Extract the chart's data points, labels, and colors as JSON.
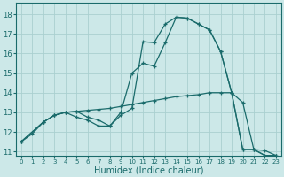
{
  "xlabel": "Humidex (Indice chaleur)",
  "background_color": "#cce8e8",
  "grid_color": "#aad0d0",
  "line_color": "#1a6b6b",
  "xlim": [
    -0.5,
    23.5
  ],
  "ylim": [
    10.8,
    18.6
  ],
  "yticks": [
    11,
    12,
    13,
    14,
    15,
    16,
    17,
    18
  ],
  "xticks": [
    0,
    1,
    2,
    3,
    4,
    5,
    6,
    7,
    8,
    9,
    10,
    11,
    12,
    13,
    14,
    15,
    16,
    17,
    18,
    19,
    20,
    21,
    22,
    23
  ],
  "line1_x": [
    0,
    1,
    2,
    3,
    4,
    5,
    6,
    7,
    8,
    9,
    10,
    11,
    12,
    13,
    14,
    15,
    16,
    17,
    18,
    19,
    20,
    21,
    22,
    23
  ],
  "line1_y": [
    11.5,
    11.9,
    12.5,
    12.85,
    13.0,
    12.75,
    12.6,
    12.3,
    12.3,
    12.85,
    13.2,
    16.6,
    16.55,
    17.5,
    17.85,
    17.8,
    17.5,
    17.2,
    16.1,
    14.0,
    11.1,
    11.1,
    10.8,
    10.8
  ],
  "line2_x": [
    0,
    2,
    3,
    4,
    5,
    6,
    7,
    8,
    9,
    10,
    11,
    12,
    13,
    14,
    15,
    16,
    17,
    18,
    19,
    20,
    21,
    22,
    23
  ],
  "line2_y": [
    11.5,
    12.5,
    12.85,
    13.0,
    13.05,
    13.1,
    13.15,
    13.2,
    13.3,
    13.4,
    13.5,
    13.6,
    13.7,
    13.8,
    13.85,
    13.9,
    14.0,
    14.0,
    14.0,
    13.5,
    11.1,
    11.05,
    10.8
  ],
  "line3_x": [
    0,
    2,
    3,
    4,
    5,
    6,
    7,
    8,
    9,
    10,
    11,
    12,
    13,
    14,
    15,
    16,
    17,
    18,
    19,
    20,
    21,
    22,
    23
  ],
  "line3_y": [
    11.5,
    12.5,
    12.85,
    13.0,
    13.05,
    12.75,
    12.6,
    12.3,
    13.0,
    15.0,
    15.5,
    15.35,
    16.55,
    17.85,
    17.8,
    17.5,
    17.2,
    16.1,
    14.0,
    11.1,
    11.1,
    10.8,
    10.8
  ]
}
